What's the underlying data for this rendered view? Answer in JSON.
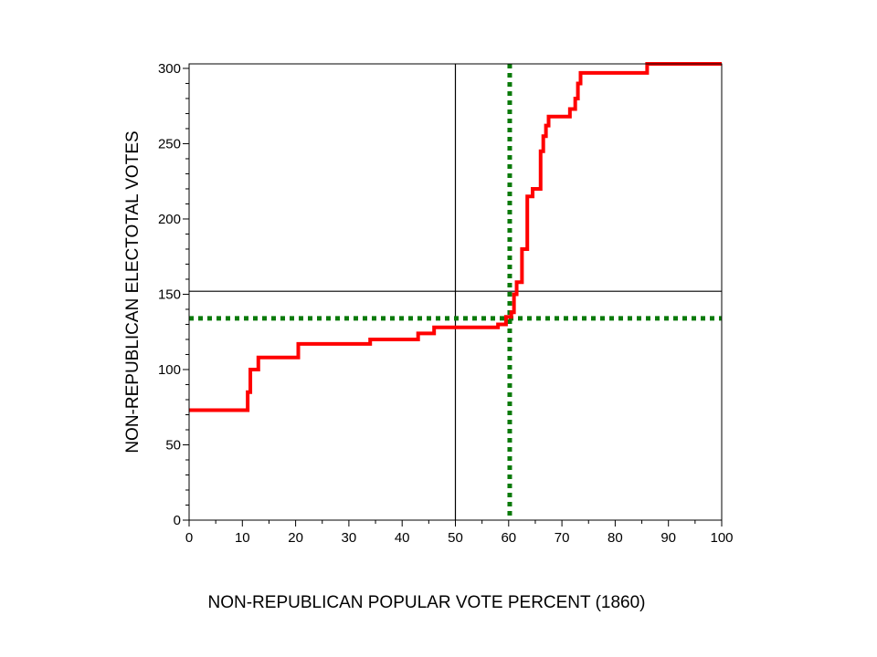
{
  "chart_data": {
    "type": "line",
    "title": "",
    "xlabel": "NON-REPUBLICAN POPULAR VOTE PERCENT (1860)",
    "ylabel": "NON-REPUBLICAN ELECTOTAL VOTES",
    "xlim": [
      0,
      100
    ],
    "ylim": [
      0,
      303
    ],
    "xticks": [
      0,
      10,
      20,
      30,
      40,
      50,
      60,
      70,
      80,
      90,
      100
    ],
    "yticks": [
      0,
      50,
      100,
      150,
      200,
      250,
      300
    ],
    "grid": false,
    "reference_lines": [
      {
        "orientation": "vertical",
        "x": 50,
        "style": "solid",
        "color": "#000000"
      },
      {
        "orientation": "horizontal",
        "y": 152,
        "style": "solid",
        "color": "#000000"
      },
      {
        "orientation": "vertical",
        "x": 60.2,
        "style": "dotted",
        "color": "#0a7a0a"
      },
      {
        "orientation": "horizontal",
        "y": 134,
        "style": "dotted",
        "color": "#0a7a0a"
      }
    ],
    "series": [
      {
        "line_type": "step",
        "color": "#ff0000",
        "x": [
          0,
          11,
          11.5,
          13,
          20.5,
          34,
          43,
          46,
          58,
          59.5,
          60.5,
          61,
          61.5,
          62.5,
          63.5,
          64.5,
          66,
          66.5,
          67,
          67.5,
          68.5,
          71.5,
          72.5,
          73,
          73.5,
          86,
          100
        ],
        "y": [
          73,
          85,
          100,
          108,
          117,
          120,
          124,
          128,
          130,
          135,
          138,
          150,
          158,
          180,
          215,
          220,
          245,
          255,
          262,
          268,
          268,
          273,
          280,
          290,
          297,
          303,
          303
        ]
      }
    ]
  }
}
